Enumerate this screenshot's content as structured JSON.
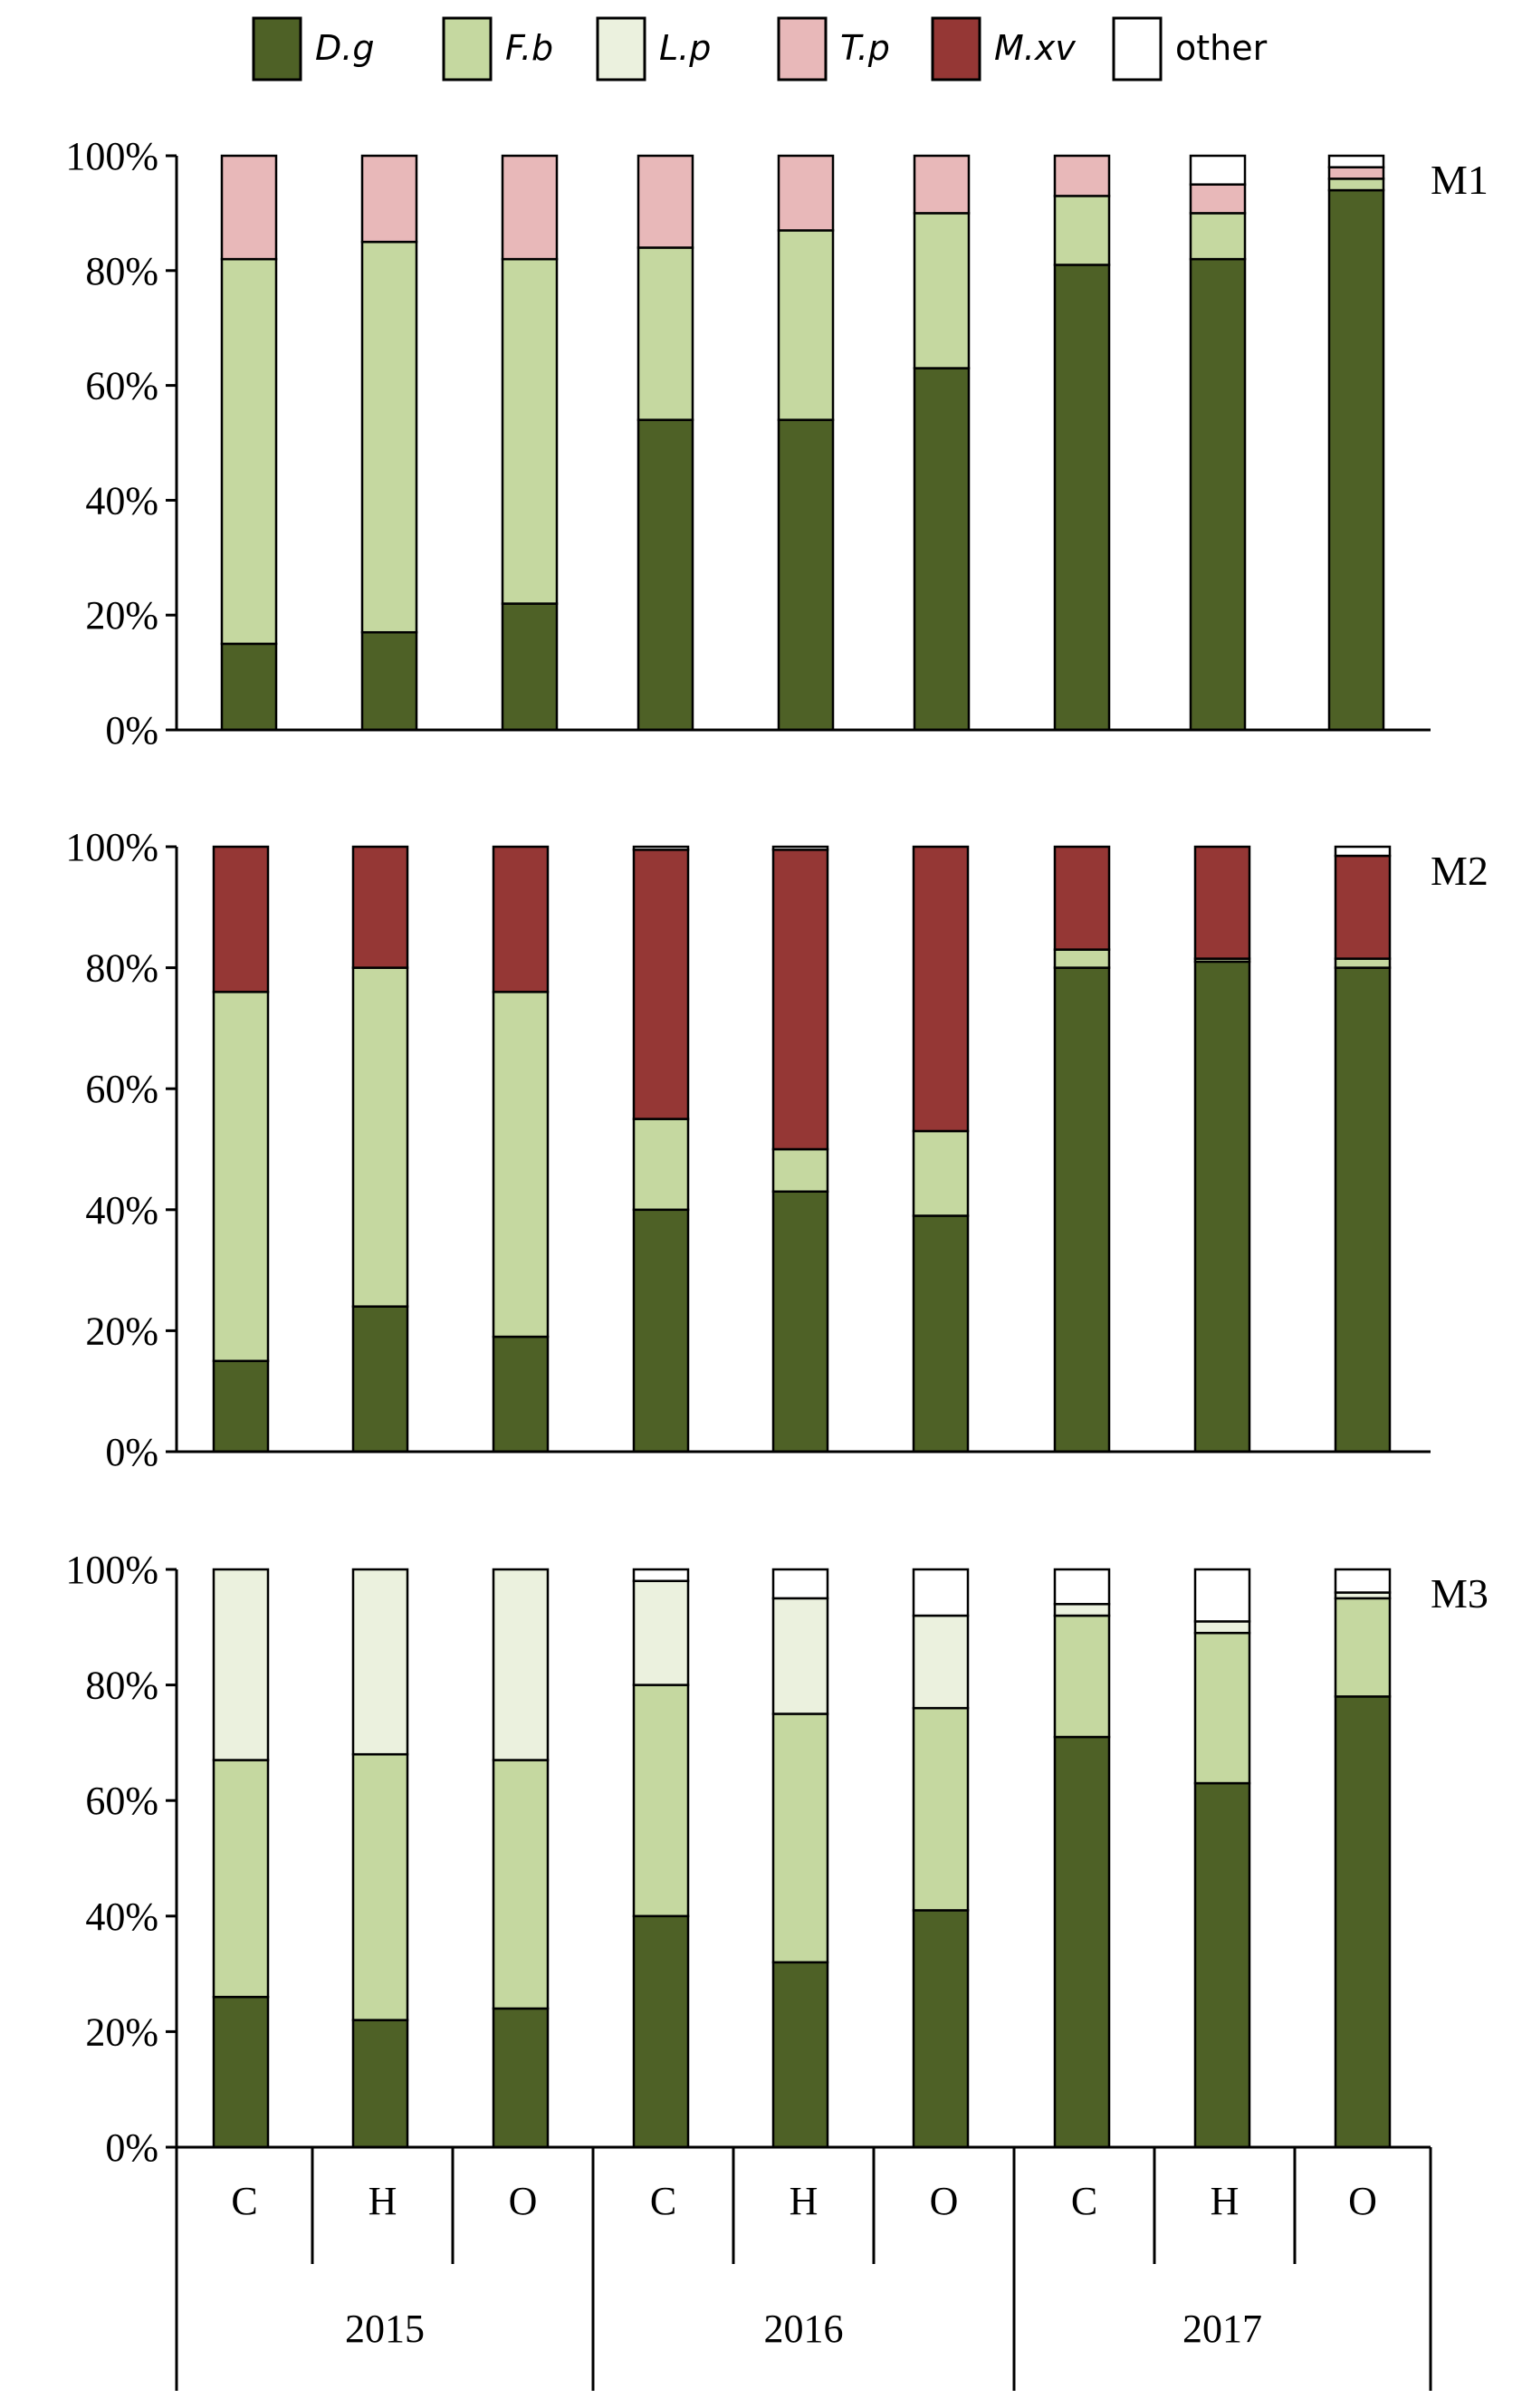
{
  "chart_data": {
    "type": "bar",
    "stacked": true,
    "normalized": true,
    "legend_position": "top",
    "grid": false,
    "ylim": [
      0,
      100
    ],
    "y_ticks": [
      "0%",
      "20%",
      "40%",
      "60%",
      "80%",
      "100%"
    ],
    "categories": [
      "C",
      "H",
      "O",
      "C",
      "H",
      "O",
      "C",
      "H",
      "O"
    ],
    "groups": [
      {
        "label": "2015",
        "categories": [
          "C",
          "H",
          "O"
        ]
      },
      {
        "label": "2016",
        "categories": [
          "C",
          "H",
          "O"
        ]
      },
      {
        "label": "2017",
        "categories": [
          "C",
          "H",
          "O"
        ]
      }
    ],
    "legend": [
      {
        "name": "D.g",
        "color": "#4e6126",
        "italic": true
      },
      {
        "name": "F.b",
        "color": "#c5d8a0",
        "italic": true
      },
      {
        "name": "L.p",
        "color": "#ebf1de",
        "italic": true
      },
      {
        "name": "T.p",
        "color": "#e8b8b9",
        "italic": true
      },
      {
        "name": "M.xv",
        "color": "#953735",
        "italic": true
      },
      {
        "name": "other",
        "color": "#ffffff",
        "italic": false
      }
    ],
    "panels": [
      {
        "label": "M1",
        "series": [
          {
            "name": "D.g",
            "values": [
              15,
              17,
              22,
              54,
              54,
              63,
              81,
              82,
              94
            ]
          },
          {
            "name": "F.b",
            "values": [
              67,
              68,
              60,
              30,
              33,
              27,
              12,
              8,
              2
            ]
          },
          {
            "name": "L.p",
            "values": [
              0,
              0,
              0,
              0,
              0,
              0,
              0,
              0,
              0
            ]
          },
          {
            "name": "T.p",
            "values": [
              18,
              15,
              18,
              16,
              13,
              10,
              7,
              5,
              2
            ]
          },
          {
            "name": "M.xv",
            "values": [
              0,
              0,
              0,
              0,
              0,
              0,
              0,
              0,
              0
            ]
          },
          {
            "name": "other",
            "values": [
              0,
              0,
              0,
              0,
              0,
              0,
              0,
              5,
              2
            ]
          }
        ]
      },
      {
        "label": "M2",
        "series": [
          {
            "name": "D.g",
            "values": [
              15,
              24,
              19,
              40,
              43,
              39,
              80,
              81,
              80
            ]
          },
          {
            "name": "F.b",
            "values": [
              61,
              56,
              57,
              15,
              7,
              14,
              3,
              0.5,
              1.5
            ]
          },
          {
            "name": "L.p",
            "values": [
              0,
              0,
              0,
              0,
              0,
              0,
              0,
              0,
              0
            ]
          },
          {
            "name": "T.p",
            "values": [
              0,
              0,
              0,
              0,
              0,
              0,
              0,
              0,
              0
            ]
          },
          {
            "name": "M.xv",
            "values": [
              24,
              20,
              24,
              44.5,
              49.5,
              47,
              17,
              18.5,
              17
            ]
          },
          {
            "name": "other",
            "values": [
              0,
              0,
              0,
              0.5,
              0.5,
              0,
              0,
              0,
              1.5
            ]
          }
        ]
      },
      {
        "label": "M3",
        "series": [
          {
            "name": "D.g",
            "values": [
              26,
              22,
              24,
              40,
              32,
              41,
              71,
              63,
              78
            ]
          },
          {
            "name": "F.b",
            "values": [
              41,
              46,
              43,
              40,
              43,
              35,
              21,
              26,
              17
            ]
          },
          {
            "name": "L.p",
            "values": [
              33,
              32,
              33,
              18,
              20,
              16,
              2,
              2,
              1
            ]
          },
          {
            "name": "T.p",
            "values": [
              0,
              0,
              0,
              0,
              0,
              0,
              0,
              0,
              0
            ]
          },
          {
            "name": "M.xv",
            "values": [
              0,
              0,
              0,
              0,
              0,
              0,
              0,
              0,
              0
            ]
          },
          {
            "name": "other",
            "values": [
              0,
              0,
              0,
              2,
              5,
              8,
              6,
              9,
              4
            ]
          }
        ]
      }
    ]
  }
}
